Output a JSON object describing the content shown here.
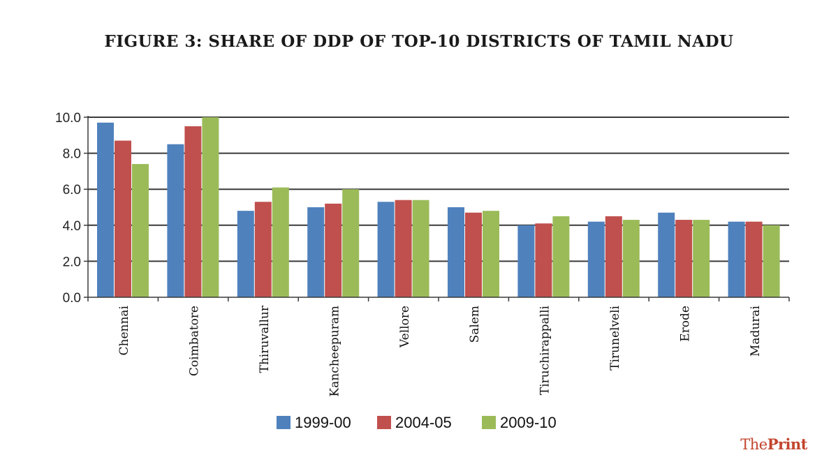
{
  "chart_data": {
    "type": "bar",
    "title": "FIGURE 3: SHARE OF DDP OF TOP-10 DISTRICTS OF TAMIL NADU",
    "xlabel": "",
    "ylabel": "",
    "ylim": [
      0,
      10
    ],
    "yticks": [
      "0.0",
      "2.0",
      "4.0",
      "6.0",
      "8.0",
      "10.0"
    ],
    "grid": true,
    "legend_position": "bottom-center",
    "categories": [
      "Chennai",
      "Coimbatore",
      "Thiruvallur",
      "Kancheepuram",
      "Vellore",
      "Salem",
      "Tiruchirappalli",
      "Tirunelveli",
      "Erode",
      "Madurai"
    ],
    "series": [
      {
        "name": "1999-00",
        "color": "#4f81bd",
        "values": [
          9.7,
          8.5,
          4.8,
          5.0,
          5.3,
          5.0,
          4.0,
          4.2,
          4.7,
          4.2
        ]
      },
      {
        "name": "2004-05",
        "color": "#c0504d",
        "values": [
          8.7,
          9.5,
          5.3,
          5.2,
          5.4,
          4.7,
          4.1,
          4.5,
          4.3,
          4.2
        ]
      },
      {
        "name": "2009-10",
        "color": "#9bbb59",
        "values": [
          7.4,
          10.0,
          6.1,
          6.0,
          5.4,
          4.8,
          4.5,
          4.3,
          4.3,
          4.0
        ]
      }
    ]
  },
  "brand": {
    "part1": "The",
    "part2": "Print"
  }
}
